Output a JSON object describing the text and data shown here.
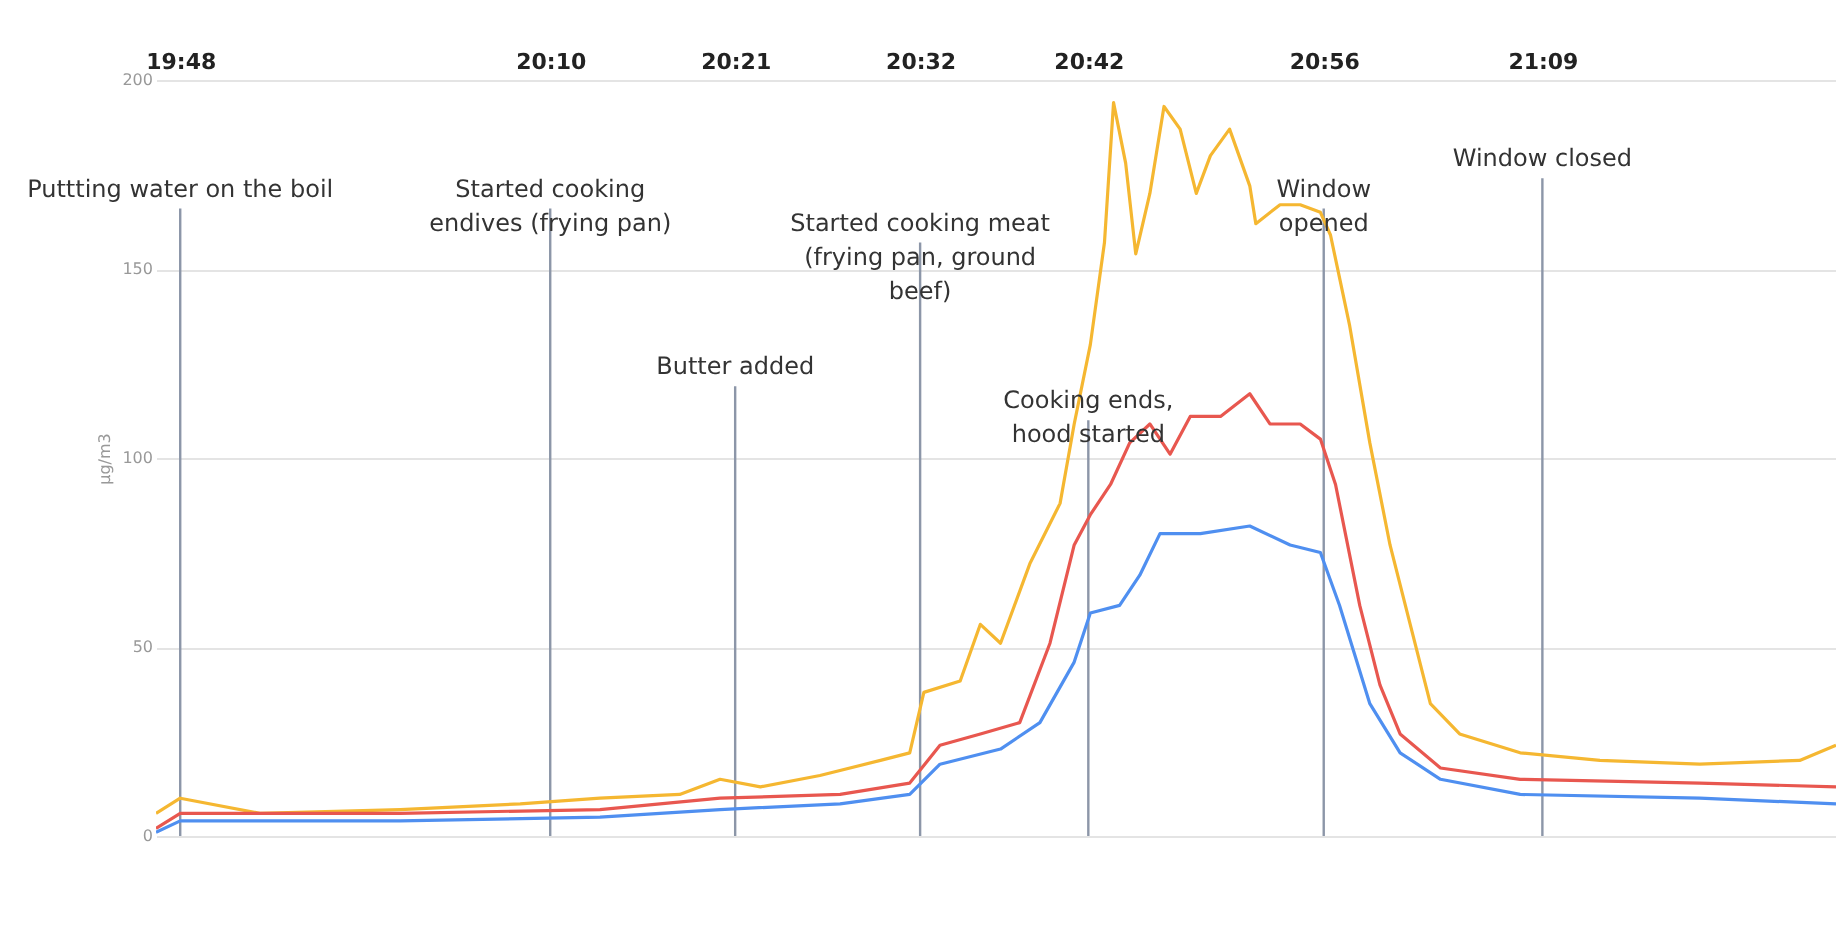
{
  "chart_data": {
    "type": "line",
    "ylabel": "µg/m3",
    "xlim": [
      19.776,
      21.441
    ],
    "ylim": [
      0,
      200
    ],
    "yticks": [
      0,
      50,
      100,
      150,
      200
    ],
    "grid": "y",
    "xticks": [
      {
        "value": 19.8,
        "label": "19:48"
      },
      {
        "value": 20.1667,
        "label": "20:10"
      },
      {
        "value": 20.35,
        "label": "20:21"
      },
      {
        "value": 20.5333,
        "label": "20:32"
      },
      {
        "value": 20.7,
        "label": "20:42"
      },
      {
        "value": 20.9333,
        "label": "20:56"
      },
      {
        "value": 21.15,
        "label": "21:09"
      }
    ],
    "series": [
      {
        "color": "#f5b731",
        "x": [
          19.776,
          19.8,
          19.879,
          20.018,
          20.137,
          20.216,
          20.295,
          20.335,
          20.375,
          20.434,
          20.494,
          20.523,
          20.537,
          20.573,
          20.593,
          20.613,
          20.642,
          20.672,
          20.686,
          20.702,
          20.716,
          20.725,
          20.737,
          20.747,
          20.761,
          20.775,
          20.791,
          20.807,
          20.821,
          20.84,
          20.86,
          20.866,
          20.89,
          20.91,
          20.93,
          20.94,
          20.959,
          20.979,
          20.999,
          21.019,
          21.039,
          21.068,
          21.128,
          21.207,
          21.306,
          21.405,
          21.441
        ],
        "values": [
          6,
          10,
          6,
          7,
          8.5,
          10,
          11,
          15,
          13,
          16,
          20,
          22,
          38,
          41,
          56,
          51,
          72,
          88,
          109,
          130,
          157,
          194,
          178,
          154,
          170,
          193,
          187,
          170,
          180,
          187,
          172,
          162,
          167,
          167,
          165,
          159,
          135,
          104,
          77,
          56,
          35,
          27,
          22,
          20,
          19,
          20,
          24
        ]
      },
      {
        "color": "#e8574f",
        "x": [
          19.776,
          19.8,
          20.018,
          20.216,
          20.335,
          20.454,
          20.523,
          20.553,
          20.593,
          20.632,
          20.662,
          20.686,
          20.702,
          20.722,
          20.741,
          20.761,
          20.781,
          20.801,
          20.831,
          20.86,
          20.88,
          20.91,
          20.93,
          20.945,
          20.969,
          20.989,
          21.009,
          21.049,
          21.128,
          21.306,
          21.441
        ],
        "values": [
          2,
          6,
          6,
          7,
          10,
          11,
          14,
          24,
          27,
          30,
          51,
          77,
          85,
          93,
          104,
          109,
          101,
          111,
          111,
          117,
          109,
          109,
          105,
          93,
          61,
          40,
          27,
          18,
          15,
          14,
          13
        ]
      },
      {
        "color": "#4f8ff0",
        "x": [
          19.776,
          19.8,
          20.018,
          20.216,
          20.335,
          20.454,
          20.523,
          20.553,
          20.613,
          20.652,
          20.686,
          20.702,
          20.731,
          20.751,
          20.771,
          20.811,
          20.86,
          20.9,
          20.93,
          20.949,
          20.979,
          21.009,
          21.049,
          21.128,
          21.306,
          21.441
        ],
        "values": [
          1,
          4,
          4,
          5,
          7,
          8.5,
          11,
          19,
          23,
          30,
          46,
          59,
          61,
          69,
          80,
          80,
          82,
          77,
          75,
          61,
          35,
          22,
          15,
          11,
          10,
          8.5
        ]
      }
    ],
    "ref_lines": [
      {
        "axis": "x",
        "value": 19.8,
        "color": "#8c96a8"
      },
      {
        "axis": "x",
        "value": 20.1667,
        "color": "#8c96a8"
      },
      {
        "axis": "x",
        "value": 20.35,
        "color": "#8c96a8"
      },
      {
        "axis": "x",
        "value": 20.5333,
        "color": "#8c96a8"
      },
      {
        "axis": "x",
        "value": 20.7,
        "color": "#8c96a8"
      },
      {
        "axis": "x",
        "value": 20.9333,
        "color": "#8c96a8"
      },
      {
        "axis": "x",
        "value": 21.15,
        "color": "#8c96a8"
      }
    ],
    "annotations": [
      {
        "text": "Puttting water on the boil",
        "x": 19.8,
        "y": 166
      },
      {
        "text": "Started cooking\nendives (frying pan)",
        "x": 20.1667,
        "y": 166
      },
      {
        "text": "Butter added",
        "x": 20.35,
        "y": 119
      },
      {
        "text": "Started cooking meat\n(frying pan, ground\nbeef)",
        "x": 20.5333,
        "y": 157
      },
      {
        "text": "Cooking ends,\nhood started",
        "x": 20.7,
        "y": 110
      },
      {
        "text": "Window\nopened",
        "x": 20.9333,
        "y": 166
      },
      {
        "text": "Window closed",
        "x": 21.15,
        "y": 174
      }
    ]
  }
}
